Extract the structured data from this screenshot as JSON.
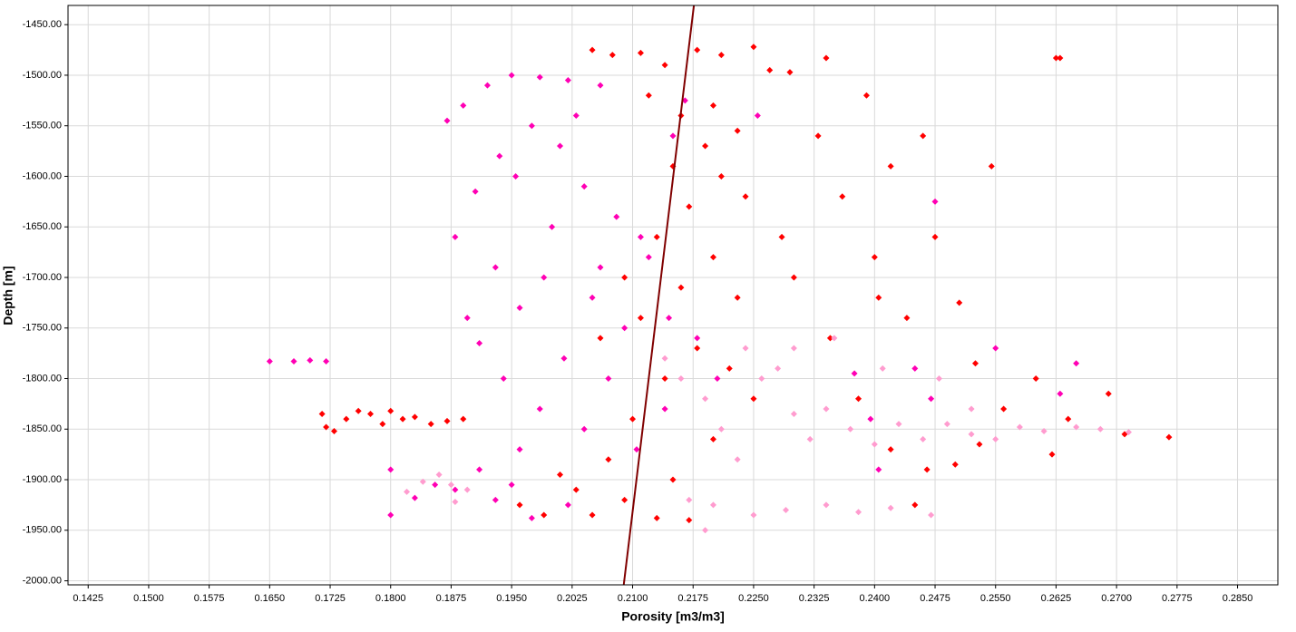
{
  "chart_data": {
    "type": "scatter",
    "xlabel": "Porosity [m3/m3]",
    "ylabel": "Depth [m]",
    "xlim": [
      0.14,
      0.29
    ],
    "ylim": [
      -2004,
      -1431
    ],
    "grid": true,
    "xticks": [
      0.1425,
      {
        "value": 0.15,
        "label": "0.1500"
      },
      0.1575,
      {
        "value": 0.165,
        "label": "0.1650"
      },
      0.1725,
      {
        "value": 0.18,
        "label": "0.1800"
      },
      0.1875,
      {
        "value": 0.195,
        "label": "0.1950"
      },
      0.2025,
      {
        "value": 0.21,
        "label": "0.2100"
      },
      0.2175,
      {
        "value": 0.225,
        "label": "0.2250"
      },
      0.2325,
      {
        "value": 0.24,
        "label": "0.2400"
      },
      0.2475,
      {
        "value": 0.255,
        "label": "0.2550"
      },
      0.2625,
      {
        "value": 0.27,
        "label": "0.2700"
      },
      0.2775,
      {
        "value": 0.285,
        "label": "0.2850"
      }
    ],
    "yticks": [
      {
        "value": -1450,
        "label": "-1450.00"
      },
      {
        "value": -1500,
        "label": "-1500.00"
      },
      {
        "value": -1550,
        "label": "-1550.00"
      },
      {
        "value": -1600,
        "label": "-1600.00"
      },
      {
        "value": -1650,
        "label": "-1650.00"
      },
      {
        "value": -1700,
        "label": "-1700.00"
      },
      {
        "value": -1750,
        "label": "-1750.00"
      },
      {
        "value": -1800,
        "label": "-1800.00"
      },
      {
        "value": -1850,
        "label": "-1850.00"
      },
      {
        "value": -1900,
        "label": "-1900.00"
      },
      {
        "value": -1950,
        "label": "-1950.00"
      },
      {
        "value": -2000,
        "label": "-2000.00"
      }
    ],
    "series": [
      {
        "color": "#ff0000",
        "points": [
          [
            0.205,
            -1475
          ],
          [
            0.2075,
            -1480
          ],
          [
            0.211,
            -1478
          ],
          [
            0.214,
            -1490
          ],
          [
            0.218,
            -1475
          ],
          [
            0.221,
            -1480
          ],
          [
            0.225,
            -1472
          ],
          [
            0.227,
            -1495
          ],
          [
            0.2295,
            -1497
          ],
          [
            0.234,
            -1483
          ],
          [
            0.2625,
            -1483
          ],
          [
            0.263,
            -1483
          ],
          [
            0.212,
            -1520
          ],
          [
            0.216,
            -1540
          ],
          [
            0.22,
            -1530
          ],
          [
            0.223,
            -1555
          ],
          [
            0.219,
            -1570
          ],
          [
            0.215,
            -1590
          ],
          [
            0.221,
            -1600
          ],
          [
            0.224,
            -1620
          ],
          [
            0.217,
            -1630
          ],
          [
            0.213,
            -1660
          ],
          [
            0.22,
            -1680
          ],
          [
            0.209,
            -1700
          ],
          [
            0.216,
            -1710
          ],
          [
            0.223,
            -1720
          ],
          [
            0.211,
            -1740
          ],
          [
            0.206,
            -1760
          ],
          [
            0.218,
            -1770
          ],
          [
            0.222,
            -1790
          ],
          [
            0.214,
            -1800
          ],
          [
            0.225,
            -1820
          ],
          [
            0.21,
            -1840
          ],
          [
            0.22,
            -1860
          ],
          [
            0.207,
            -1880
          ],
          [
            0.215,
            -1900
          ],
          [
            0.203,
            -1910
          ],
          [
            0.209,
            -1920
          ],
          [
            0.199,
            -1935
          ],
          [
            0.205,
            -1935
          ],
          [
            0.213,
            -1938
          ],
          [
            0.217,
            -1940
          ],
          [
            0.196,
            -1925
          ],
          [
            0.201,
            -1895
          ],
          [
            0.1715,
            -1835
          ],
          [
            0.172,
            -1848
          ],
          [
            0.173,
            -1852
          ],
          [
            0.1745,
            -1840
          ],
          [
            0.176,
            -1832
          ],
          [
            0.1775,
            -1835
          ],
          [
            0.179,
            -1845
          ],
          [
            0.18,
            -1832
          ],
          [
            0.1815,
            -1840
          ],
          [
            0.183,
            -1838
          ],
          [
            0.185,
            -1845
          ],
          [
            0.187,
            -1842
          ],
          [
            0.189,
            -1840
          ],
          [
            0.233,
            -1560
          ],
          [
            0.236,
            -1620
          ],
          [
            0.239,
            -1520
          ],
          [
            0.24,
            -1680
          ],
          [
            0.242,
            -1590
          ],
          [
            0.246,
            -1560
          ],
          [
            0.2475,
            -1660
          ],
          [
            0.2505,
            -1725
          ],
          [
            0.2525,
            -1785
          ],
          [
            0.2545,
            -1590
          ],
          [
            0.256,
            -1830
          ],
          [
            0.26,
            -1800
          ],
          [
            0.264,
            -1840
          ],
          [
            0.269,
            -1815
          ],
          [
            0.271,
            -1855
          ],
          [
            0.2765,
            -1858
          ],
          [
            0.244,
            -1740
          ],
          [
            0.238,
            -1820
          ],
          [
            0.242,
            -1870
          ],
          [
            0.2465,
            -1890
          ],
          [
            0.253,
            -1865
          ],
          [
            0.262,
            -1875
          ],
          [
            0.2345,
            -1760
          ],
          [
            0.23,
            -1700
          ],
          [
            0.2285,
            -1660
          ],
          [
            0.245,
            -1925
          ],
          [
            0.25,
            -1885
          ],
          [
            0.2405,
            -1720
          ]
        ]
      },
      {
        "color": "#ff00b4",
        "points": [
          [
            0.165,
            -1783
          ],
          [
            0.168,
            -1783
          ],
          [
            0.17,
            -1782
          ],
          [
            0.172,
            -1783
          ],
          [
            0.187,
            -1545
          ],
          [
            0.189,
            -1530
          ],
          [
            0.192,
            -1510
          ],
          [
            0.195,
            -1500
          ],
          [
            0.1985,
            -1502
          ],
          [
            0.202,
            -1505
          ],
          [
            0.206,
            -1510
          ],
          [
            0.1975,
            -1550
          ],
          [
            0.201,
            -1570
          ],
          [
            0.1955,
            -1600
          ],
          [
            0.204,
            -1610
          ],
          [
            0.1905,
            -1615
          ],
          [
            0.188,
            -1660
          ],
          [
            0.193,
            -1690
          ],
          [
            0.2,
            -1650
          ],
          [
            0.208,
            -1640
          ],
          [
            0.211,
            -1660
          ],
          [
            0.199,
            -1700
          ],
          [
            0.196,
            -1730
          ],
          [
            0.1895,
            -1740
          ],
          [
            0.191,
            -1765
          ],
          [
            0.205,
            -1720
          ],
          [
            0.209,
            -1750
          ],
          [
            0.212,
            -1680
          ],
          [
            0.2015,
            -1780
          ],
          [
            0.194,
            -1800
          ],
          [
            0.207,
            -1800
          ],
          [
            0.1985,
            -1830
          ],
          [
            0.204,
            -1850
          ],
          [
            0.2105,
            -1870
          ],
          [
            0.196,
            -1870
          ],
          [
            0.191,
            -1890
          ],
          [
            0.188,
            -1910
          ],
          [
            0.193,
            -1920
          ],
          [
            0.1975,
            -1938
          ],
          [
            0.202,
            -1925
          ],
          [
            0.195,
            -1905
          ],
          [
            0.1855,
            -1905
          ],
          [
            0.183,
            -1918
          ],
          [
            0.18,
            -1935
          ],
          [
            0.18,
            -1890
          ],
          [
            0.215,
            -1560
          ],
          [
            0.2145,
            -1740
          ],
          [
            0.218,
            -1760
          ],
          [
            0.2205,
            -1800
          ],
          [
            0.214,
            -1830
          ],
          [
            0.2255,
            -1540
          ],
          [
            0.245,
            -1790
          ],
          [
            0.2475,
            -1625
          ],
          [
            0.255,
            -1770
          ],
          [
            0.263,
            -1815
          ],
          [
            0.265,
            -1785
          ],
          [
            0.2375,
            -1795
          ],
          [
            0.2395,
            -1840
          ],
          [
            0.2405,
            -1890
          ],
          [
            0.247,
            -1820
          ],
          [
            0.2165,
            -1525
          ],
          [
            0.206,
            -1690
          ],
          [
            0.203,
            -1540
          ],
          [
            0.1935,
            -1580
          ]
        ]
      },
      {
        "color": "#ff9ccf",
        "points": [
          [
            0.182,
            -1912
          ],
          [
            0.184,
            -1902
          ],
          [
            0.186,
            -1895
          ],
          [
            0.1875,
            -1905
          ],
          [
            0.1895,
            -1910
          ],
          [
            0.188,
            -1922
          ],
          [
            0.216,
            -1800
          ],
          [
            0.219,
            -1820
          ],
          [
            0.221,
            -1850
          ],
          [
            0.224,
            -1770
          ],
          [
            0.226,
            -1800
          ],
          [
            0.223,
            -1880
          ],
          [
            0.228,
            -1790
          ],
          [
            0.23,
            -1835
          ],
          [
            0.232,
            -1860
          ],
          [
            0.234,
            -1830
          ],
          [
            0.237,
            -1850
          ],
          [
            0.24,
            -1865
          ],
          [
            0.243,
            -1845
          ],
          [
            0.246,
            -1860
          ],
          [
            0.249,
            -1845
          ],
          [
            0.252,
            -1855
          ],
          [
            0.255,
            -1860
          ],
          [
            0.258,
            -1848
          ],
          [
            0.261,
            -1852
          ],
          [
            0.265,
            -1848
          ],
          [
            0.268,
            -1850
          ],
          [
            0.2715,
            -1853
          ],
          [
            0.22,
            -1925
          ],
          [
            0.225,
            -1935
          ],
          [
            0.229,
            -1930
          ],
          [
            0.234,
            -1925
          ],
          [
            0.238,
            -1932
          ],
          [
            0.242,
            -1928
          ],
          [
            0.247,
            -1935
          ],
          [
            0.217,
            -1920
          ],
          [
            0.235,
            -1760
          ],
          [
            0.241,
            -1790
          ],
          [
            0.248,
            -1800
          ],
          [
            0.214,
            -1780
          ],
          [
            0.23,
            -1770
          ],
          [
            0.252,
            -1830
          ],
          [
            0.219,
            -1950
          ]
        ]
      }
    ],
    "trend_line": {
      "color": "#800000",
      "x": [
        0.2089,
        0.2176
      ],
      "y": [
        -2004,
        -1431
      ]
    }
  }
}
